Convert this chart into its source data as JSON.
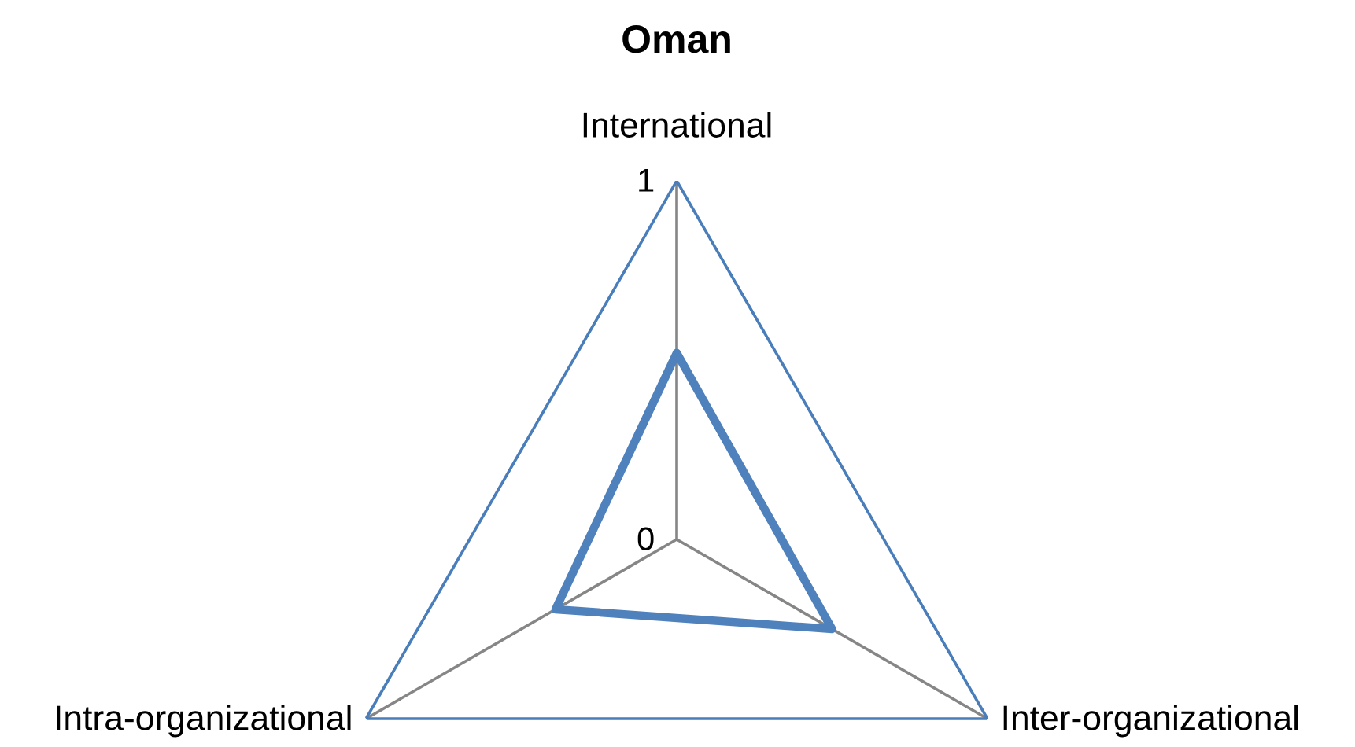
{
  "chart_data": {
    "type": "radar",
    "title": "Oman",
    "categories": [
      "International",
      "Inter-organizational",
      "Intra-organizational"
    ],
    "series": [
      {
        "color": "#4f81bd",
        "values": [
          0.52,
          0.5,
          0.39
        ]
      }
    ],
    "ylim": [
      0,
      1
    ],
    "yticks": [
      0,
      1
    ],
    "grid": true,
    "marker": "none",
    "line_style": "solid"
  }
}
